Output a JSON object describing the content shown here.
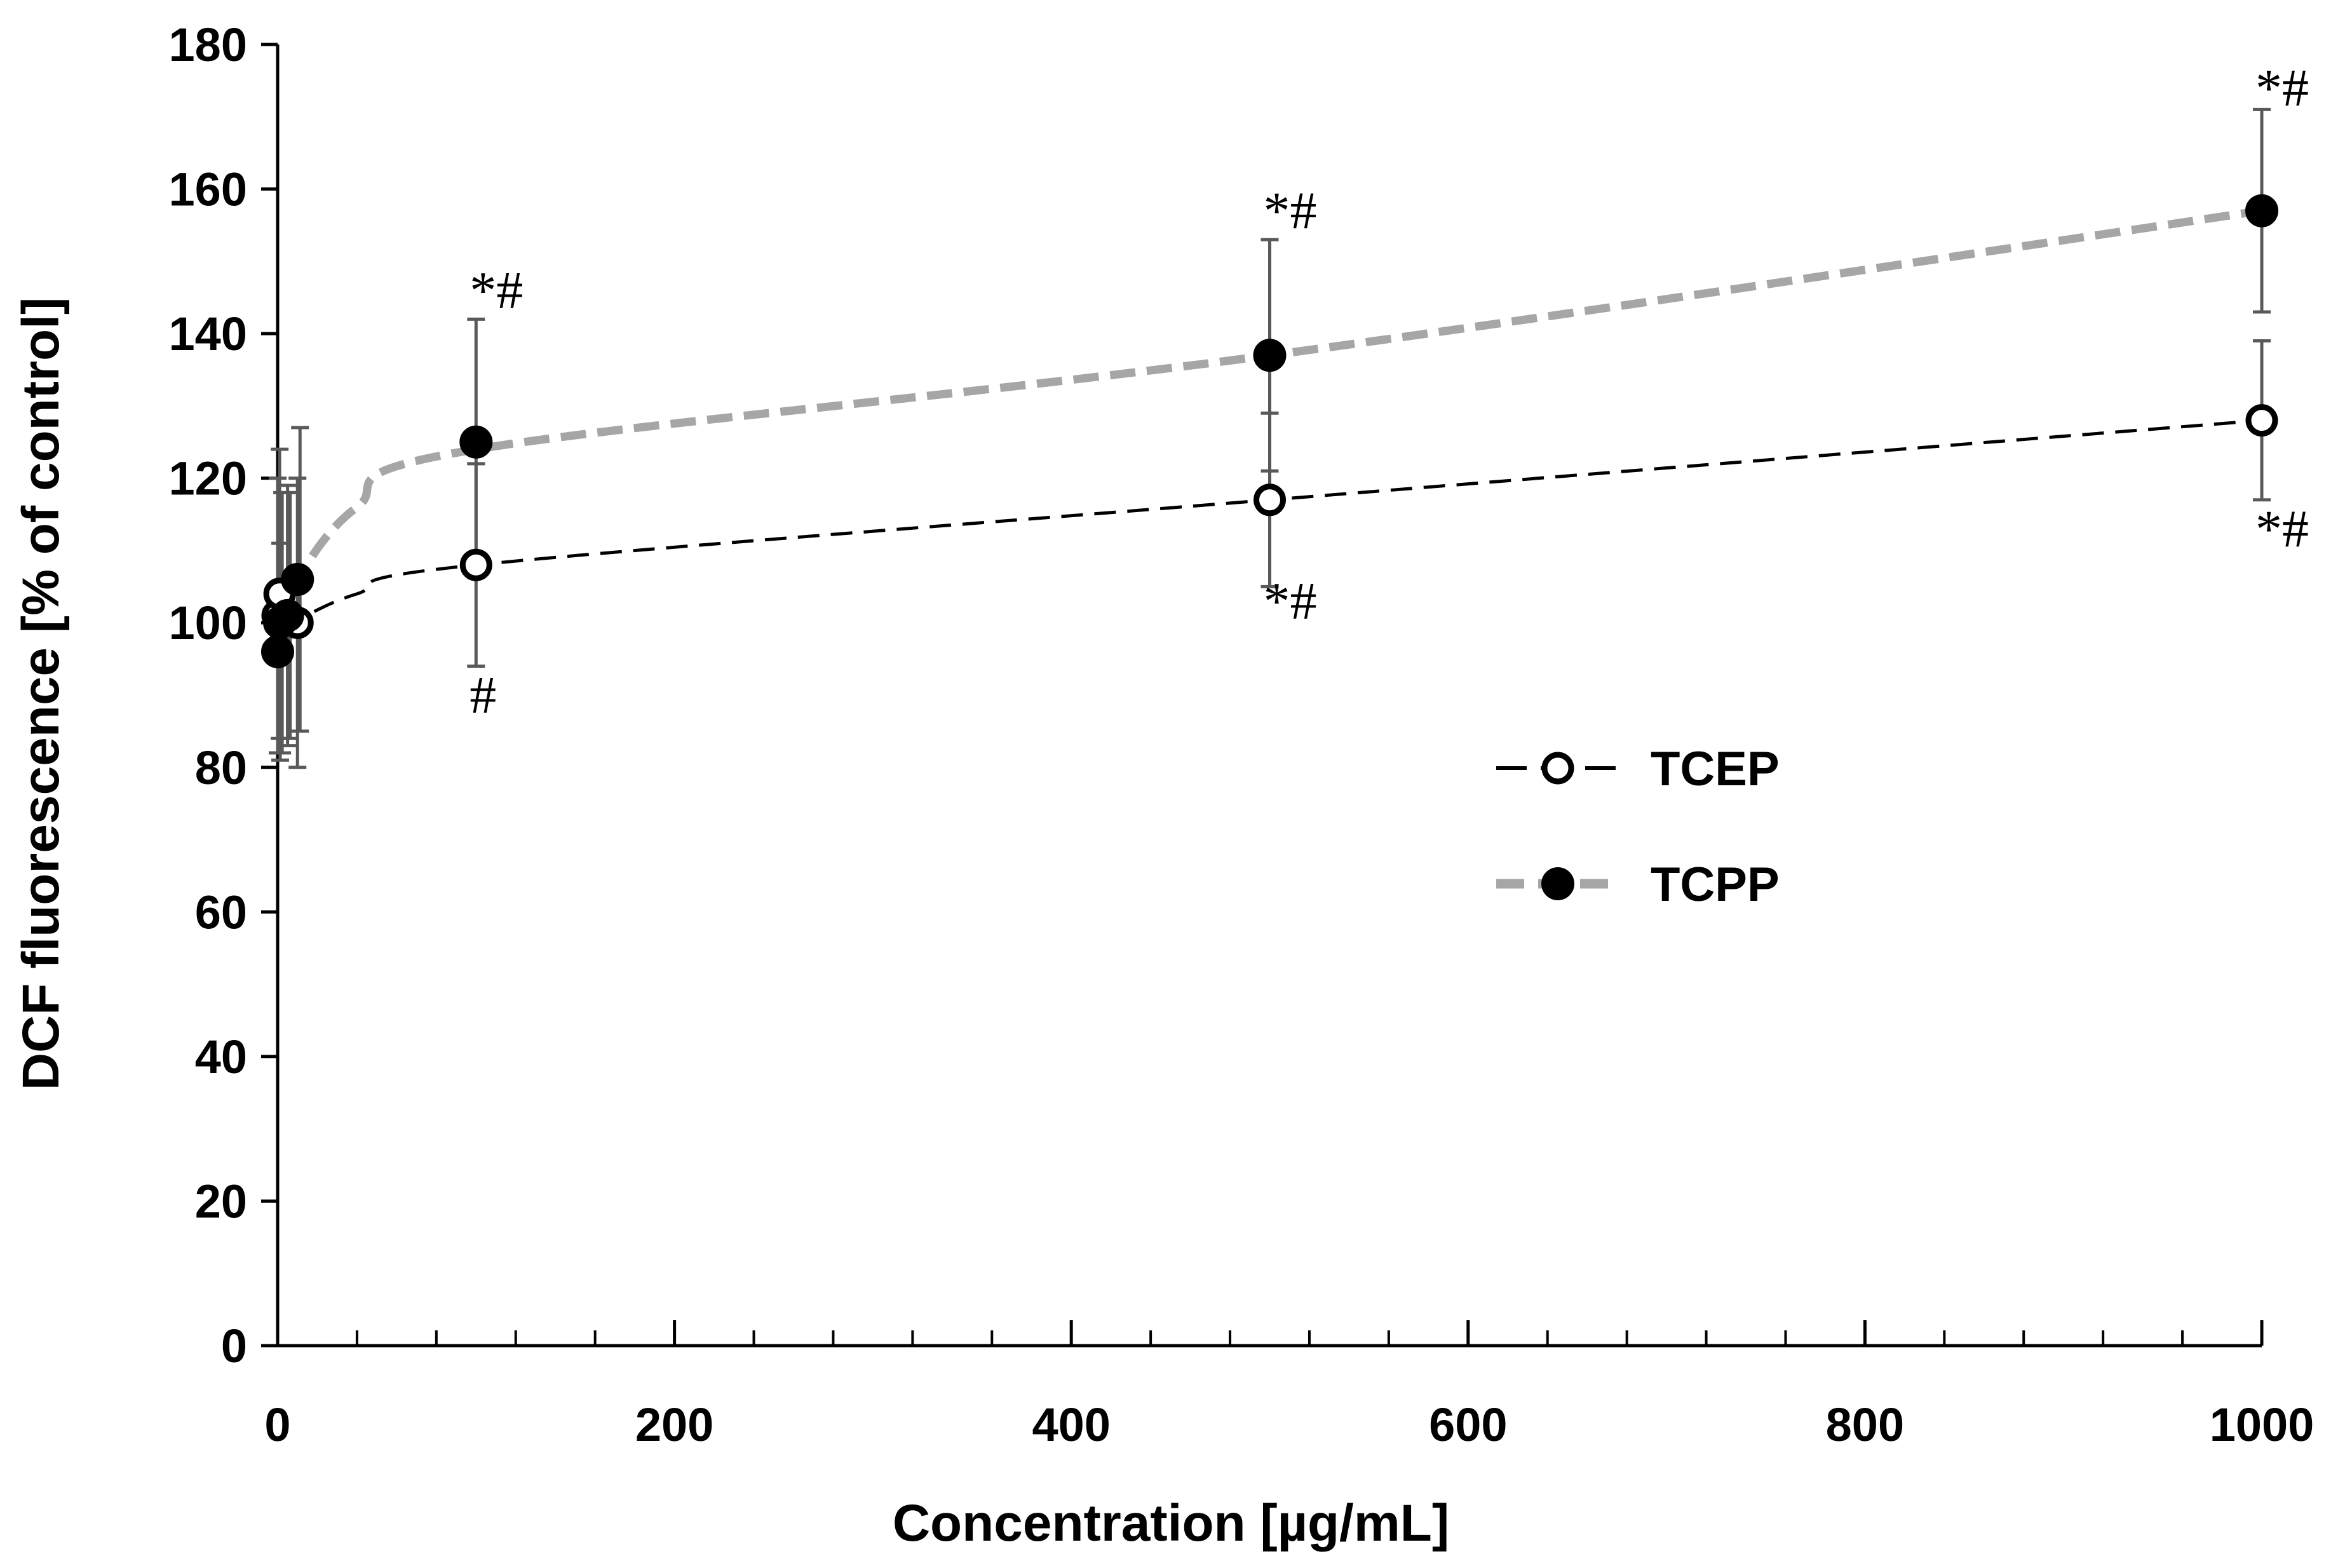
{
  "chart_data": {
    "type": "line",
    "title": "",
    "xlabel": "Concentration [µg/mL]",
    "ylabel": "DCF fluorescence [% of control]",
    "xlim": [
      0,
      1000
    ],
    "ylim": [
      0,
      180
    ],
    "xticks": [
      0,
      200,
      400,
      600,
      800,
      1000
    ],
    "yticks": [
      0,
      20,
      40,
      60,
      80,
      100,
      120,
      140,
      160,
      180
    ],
    "x_minor_step": 40,
    "grid": false,
    "legend_position": "center-right",
    "series": [
      {
        "name": "TCEP",
        "line_color": "#000000",
        "line_style": "dashed-thin",
        "marker": "open-circle",
        "x": [
          0,
          1,
          5,
          10,
          100,
          500,
          1000
        ],
        "y": [
          101,
          104,
          101,
          100,
          108,
          117,
          128
        ],
        "err": [
          19,
          20,
          18,
          20,
          14,
          12,
          11
        ]
      },
      {
        "name": "TCPP",
        "line_color": "#a6a6a6",
        "line_style": "dashed-thick",
        "marker": "filled-circle",
        "x": [
          0,
          1,
          5,
          10,
          100,
          500,
          1000
        ],
        "y": [
          96,
          100,
          101,
          106,
          125,
          137,
          157
        ],
        "err": [
          15,
          18,
          17,
          21,
          17,
          16,
          14
        ]
      }
    ],
    "annotations": [
      {
        "text": "*#",
        "x": 100,
        "y": 146
      },
      {
        "text": "#",
        "x": 100,
        "y": 90
      },
      {
        "text": "*#",
        "x": 500,
        "y": 157
      },
      {
        "text": "*#",
        "x": 500,
        "y": 103
      },
      {
        "text": "*#",
        "x": 1000,
        "y": 174
      },
      {
        "text": "*#",
        "x": 1000,
        "y": 113
      }
    ]
  }
}
